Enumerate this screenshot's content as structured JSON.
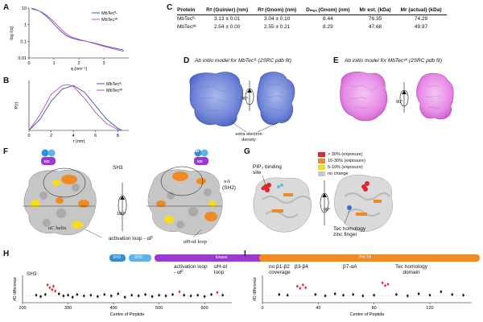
{
  "panels": {
    "A": {
      "label": "A",
      "ylabel": "log I(q)",
      "xlabel": "q (nm⁻¹)",
      "legend": [
        "MbTecᶠᴸ",
        "MbTecˢᴷ"
      ]
    },
    "B": {
      "label": "B",
      "ylabel": "P(r)",
      "xlabel": "r (nm)",
      "legend": [
        "MbTecᶠᴸ",
        "MbTecˢᴷ"
      ]
    },
    "C": {
      "label": "C",
      "headers": [
        "Protein",
        "Rᵍ (Guinier) (nm)",
        "Rᵍ (Gnom) (nm)",
        "Dₘₐₓ (Gnom) (nm)",
        "Mr est. (kDa)",
        "Mr (actual) (kDa)"
      ],
      "rows": [
        [
          "MbTecᶠᴸ",
          "3.13 ± 0.01",
          "3.04 ± 0.10",
          "8.44",
          "76.35",
          "74.29"
        ],
        [
          "MbTecˢᴷ",
          "2.54 ± 0.00",
          "2.55 ± 0.21",
          "8.29",
          "47.68",
          "49.97"
        ]
      ]
    },
    "D": {
      "label": "D",
      "title": "Ab initio model for MbTecᶠᴸ (2SRC pdb fit)",
      "rotation": "90°",
      "annotation": "extra electron density"
    },
    "E": {
      "label": "E",
      "title": "Ab initio model for MbTecˢᴷ (2SRC pdb fit)",
      "rotation": "90°"
    },
    "F": {
      "label": "F",
      "badge_sh": "SH",
      "badge_kd": "KD",
      "sh3": "SH3",
      "alpha_a": "αA",
      "sh2": "(SH2)",
      "rotation": "180°",
      "ac_helix": "αC helix",
      "act_loop": "activation loop - αF",
      "ah_loop": "αH-αI loop"
    },
    "G": {
      "label": "G",
      "pip": "PIP₃ binding site",
      "rotation": "90°",
      "zinc": "Tec homology zinc finger",
      "legend": [
        {
          "label": "> 30% (exposure)",
          "color": "#e0262b"
        },
        {
          "label": "10-30% (exposure)",
          "color": "#f08a24"
        },
        {
          "label": "5-10% (exposure)",
          "color": "#f5dd1e"
        },
        {
          "label": "no change",
          "color": "#c8c8c8"
        }
      ]
    },
    "H": {
      "label": "H",
      "domains": [
        "SH3",
        "SH2",
        "kinase"
      ],
      "annotations": [
        "SH3",
        "activation loop - αF",
        "αH-αI loop"
      ],
      "ylabel": "#D difference",
      "xlabel": "Centre of Peptide",
      "xticks": [
        "200",
        "300",
        "400",
        "500",
        "600"
      ]
    },
    "I": {
      "label": "I",
      "domain": "PH-TH",
      "annotations": [
        "no β1-β2 coverage",
        "β3-β4",
        "β7-αA",
        "Tec homology domain"
      ],
      "ylabel": "#D difference",
      "xlabel": "Centre of Peptide",
      "xticks": [
        "0",
        "40",
        "80",
        "120"
      ]
    }
  },
  "chart_data": [
    {
      "type": "line",
      "title": "",
      "xlabel": "q (nm⁻¹)",
      "ylabel": "log I(q)",
      "xlim": [
        0,
        4
      ],
      "ylim_log": [
        0.01,
        10
      ],
      "yticks": [
        "10",
        "1",
        "0.1",
        "0.01"
      ],
      "xticks": [
        "0",
        "1",
        "2",
        "3"
      ],
      "series": [
        {
          "name": "MbTecᶠᴸ",
          "color": "#3d4fb5",
          "x": [
            0.1,
            0.3,
            0.5,
            0.7,
            0.9,
            1.1,
            1.3,
            1.5,
            1.7,
            2.0,
            2.3,
            2.6,
            3.0,
            3.4,
            3.8
          ],
          "y": [
            10,
            8,
            5.5,
            3.2,
            1.6,
            0.75,
            0.38,
            0.22,
            0.16,
            0.12,
            0.1,
            0.08,
            0.055,
            0.04,
            0.03
          ]
        },
        {
          "name": "MbTecˢᴷ",
          "color": "#b44fc4",
          "x": [
            0.1,
            0.3,
            0.5,
            0.7,
            0.9,
            1.1,
            1.3,
            1.5,
            1.7,
            2.0,
            2.3,
            2.6,
            3.0,
            3.4,
            3.8
          ],
          "y": [
            9,
            7.5,
            5.8,
            3.8,
            2.1,
            1.05,
            0.52,
            0.28,
            0.18,
            0.13,
            0.1,
            0.075,
            0.05,
            0.035,
            0.025
          ]
        }
      ]
    },
    {
      "type": "line",
      "title": "",
      "xlabel": "r (nm)",
      "ylabel": "P(r)",
      "xlim": [
        0,
        9
      ],
      "xticks": [
        "0",
        "2",
        "4",
        "6",
        "8"
      ],
      "series": [
        {
          "name": "MbTecᶠᴸ",
          "color": "#3d4fb5",
          "x": [
            0,
            1,
            2,
            3,
            4,
            5,
            6,
            7,
            8,
            8.4
          ],
          "y": [
            0,
            0.25,
            0.65,
            0.92,
            1.0,
            0.85,
            0.55,
            0.25,
            0.05,
            0
          ]
        },
        {
          "name": "MbTecˢᴷ",
          "color": "#b44fc4",
          "x": [
            0,
            1,
            2,
            3,
            3.5,
            4,
            5,
            6,
            7,
            8,
            8.3
          ],
          "y": [
            0,
            0.35,
            0.8,
            1.0,
            1.02,
            0.98,
            0.72,
            0.4,
            0.15,
            0.02,
            0
          ]
        }
      ]
    },
    {
      "type": "scatter",
      "xlabel": "Centre of Peptide",
      "ylabel": "#D difference",
      "xlim": [
        200,
        660
      ],
      "ylim": [
        -1,
        3
      ],
      "points": [
        {
          "x": 255,
          "y": 1.6,
          "c": "#e0262b"
        },
        {
          "x": 260,
          "y": 1.2,
          "c": "#e0262b"
        },
        {
          "x": 265,
          "y": 0.9,
          "c": "#e0262b"
        },
        {
          "x": 268,
          "y": 1.4,
          "c": "#e0262b"
        },
        {
          "x": 272,
          "y": 0.7,
          "c": "#e0262b"
        },
        {
          "x": 230,
          "y": 0.1,
          "c": "#111"
        },
        {
          "x": 240,
          "y": -0.1,
          "c": "#111"
        },
        {
          "x": 250,
          "y": 0.2,
          "c": "#111"
        },
        {
          "x": 280,
          "y": 0.3,
          "c": "#111"
        },
        {
          "x": 290,
          "y": 0.0,
          "c": "#111"
        },
        {
          "x": 300,
          "y": 0.1,
          "c": "#111"
        },
        {
          "x": 310,
          "y": -0.2,
          "c": "#111"
        },
        {
          "x": 320,
          "y": 0.2,
          "c": "#111"
        },
        {
          "x": 335,
          "y": 0.0,
          "c": "#111"
        },
        {
          "x": 350,
          "y": 0.1,
          "c": "#111"
        },
        {
          "x": 365,
          "y": -0.1,
          "c": "#111"
        },
        {
          "x": 380,
          "y": 0.2,
          "c": "#111"
        },
        {
          "x": 395,
          "y": 0.0,
          "c": "#111"
        },
        {
          "x": 410,
          "y": 0.3,
          "c": "#111"
        },
        {
          "x": 425,
          "y": -0.2,
          "c": "#111"
        },
        {
          "x": 440,
          "y": 0.1,
          "c": "#111"
        },
        {
          "x": 455,
          "y": 0.0,
          "c": "#111"
        },
        {
          "x": 470,
          "y": 0.2,
          "c": "#111"
        },
        {
          "x": 485,
          "y": -0.1,
          "c": "#111"
        },
        {
          "x": 500,
          "y": 0.1,
          "c": "#111"
        },
        {
          "x": 515,
          "y": 0.0,
          "c": "#111"
        },
        {
          "x": 530,
          "y": 0.2,
          "c": "#111"
        },
        {
          "x": 545,
          "y": 0.6,
          "c": "#e0262b"
        },
        {
          "x": 555,
          "y": 0.1,
          "c": "#111"
        },
        {
          "x": 570,
          "y": 0.0,
          "c": "#111"
        },
        {
          "x": 585,
          "y": 0.1,
          "c": "#111"
        },
        {
          "x": 600,
          "y": -0.1,
          "c": "#111"
        },
        {
          "x": 615,
          "y": 0.2,
          "c": "#111"
        },
        {
          "x": 628,
          "y": 0.5,
          "c": "#e0262b"
        },
        {
          "x": 640,
          "y": 0.1,
          "c": "#111"
        }
      ]
    },
    {
      "type": "scatter",
      "xlabel": "Centre of Peptide",
      "ylabel": "#D difference",
      "xlim": [
        0,
        150
      ],
      "ylim": [
        -1,
        3
      ],
      "points": [
        {
          "x": 12,
          "y": 0.2,
          "c": "#111"
        },
        {
          "x": 18,
          "y": 0.1,
          "c": "#111"
        },
        {
          "x": 25,
          "y": 1.4,
          "c": "#e0262b"
        },
        {
          "x": 27,
          "y": 1.1,
          "c": "#e0262b"
        },
        {
          "x": 29,
          "y": 1.6,
          "c": "#e0262b"
        },
        {
          "x": 31,
          "y": 1.2,
          "c": "#e0262b"
        },
        {
          "x": 38,
          "y": 0.2,
          "c": "#111"
        },
        {
          "x": 45,
          "y": 0.0,
          "c": "#111"
        },
        {
          "x": 52,
          "y": 0.3,
          "c": "#111"
        },
        {
          "x": 58,
          "y": 0.1,
          "c": "#111"
        },
        {
          "x": 65,
          "y": 0.2,
          "c": "#111"
        },
        {
          "x": 72,
          "y": 0.0,
          "c": "#111"
        },
        {
          "x": 80,
          "y": 0.1,
          "c": "#111"
        },
        {
          "x": 86,
          "y": 1.9,
          "c": "#e0262b"
        },
        {
          "x": 88,
          "y": 1.5,
          "c": "#e0262b"
        },
        {
          "x": 90,
          "y": 1.7,
          "c": "#e0262b"
        },
        {
          "x": 96,
          "y": 0.2,
          "c": "#111"
        },
        {
          "x": 104,
          "y": 0.0,
          "c": "#111"
        },
        {
          "x": 112,
          "y": 0.3,
          "c": "#111"
        },
        {
          "x": 120,
          "y": 0.1,
          "c": "#111"
        },
        {
          "x": 128,
          "y": 0.6,
          "c": "#111"
        },
        {
          "x": 136,
          "y": 0.2,
          "c": "#111"
        },
        {
          "x": 144,
          "y": 0.1,
          "c": "#111"
        }
      ]
    }
  ]
}
